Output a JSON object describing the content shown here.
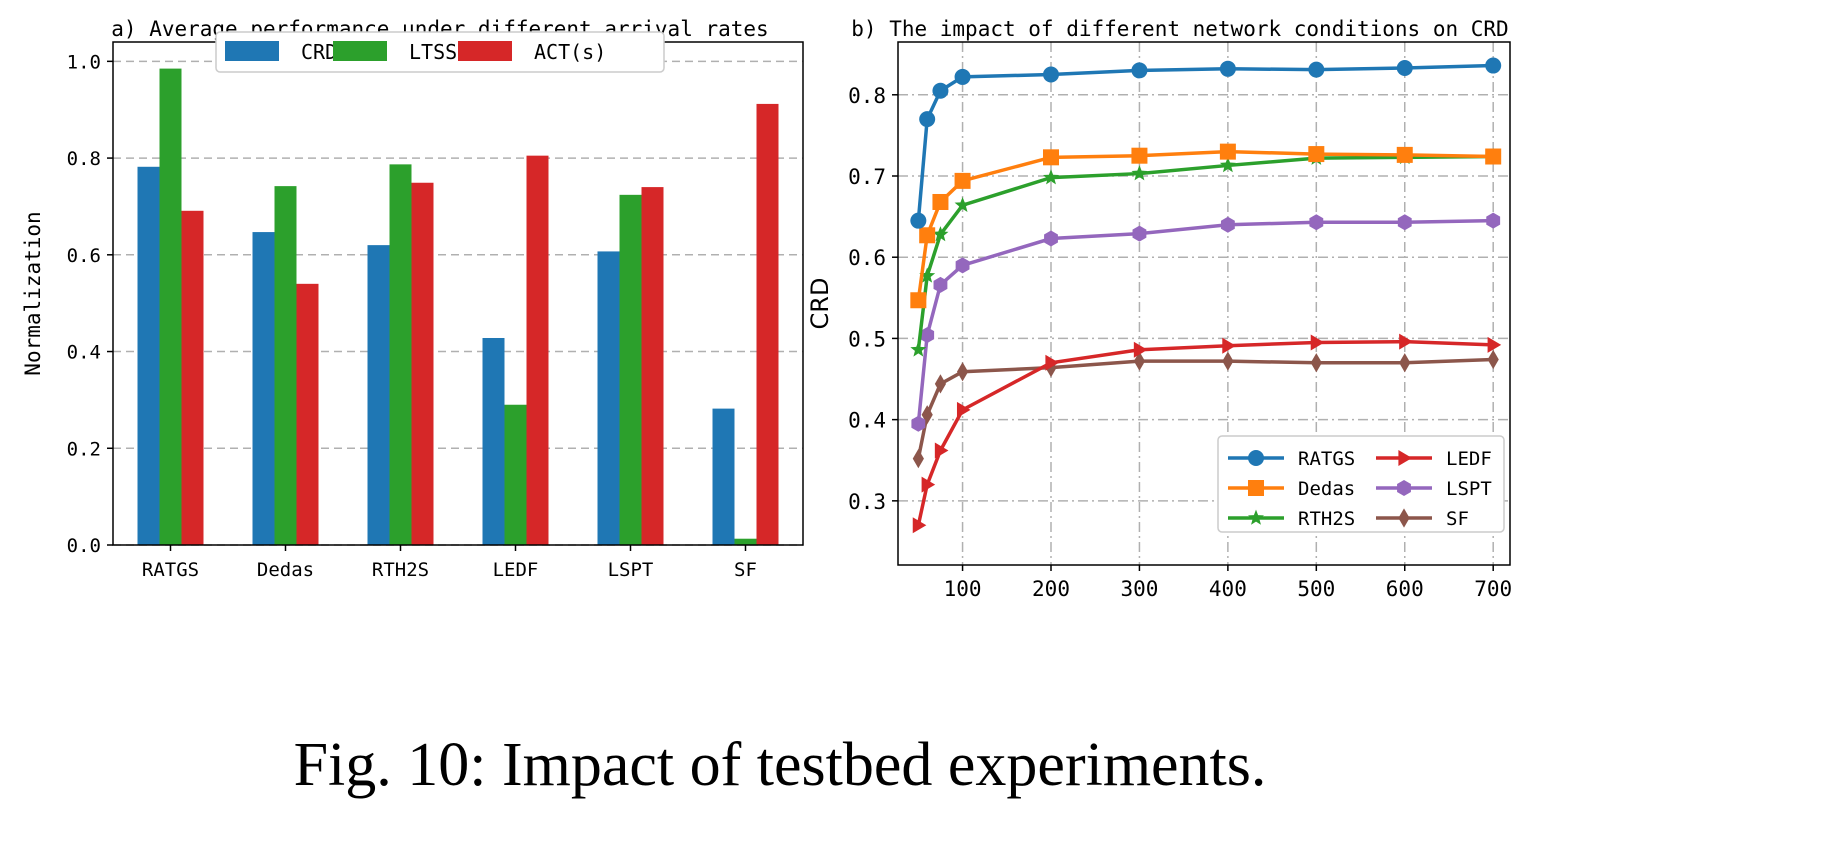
{
  "caption": "Fig. 10: Impact of testbed experiments.",
  "chart_data": [
    {
      "type": "bar",
      "title": "a) Average performance under different arrival rates",
      "xlabel": "",
      "ylabel": "Normalization",
      "ylim": [
        0,
        1.04
      ],
      "yticks": [
        "0.0",
        "0.2",
        "0.4",
        "0.6",
        "0.8",
        "1.0"
      ],
      "grid": true,
      "legend_placement": "top-center",
      "categories": [
        "RATGS",
        "Dedas",
        "RTH2S",
        "LEDF",
        "LSPT",
        "SF"
      ],
      "series": [
        {
          "name": "CRD",
          "color": "#1f77b4",
          "values": [
            0.782,
            0.647,
            0.62,
            0.428,
            0.607,
            0.282
          ]
        },
        {
          "name": "LTSS",
          "color": "#2ca02c",
          "values": [
            0.985,
            0.742,
            0.787,
            0.29,
            0.724,
            0.013
          ]
        },
        {
          "name": "ACT(s)",
          "color": "#d62728",
          "values": [
            0.691,
            0.54,
            0.749,
            0.805,
            0.74,
            0.912
          ]
        }
      ]
    },
    {
      "type": "line",
      "title": "b) The impact of different network conditions on CRD",
      "xlabel": "",
      "ylabel": "CRD",
      "xlim": [
        27,
        719
      ],
      "ylim": [
        0.221,
        0.865
      ],
      "xticks": [
        "100",
        "200",
        "300",
        "400",
        "500",
        "600",
        "700"
      ],
      "yticks": [
        "0.3",
        "0.4",
        "0.5",
        "0.6",
        "0.7",
        "0.8"
      ],
      "grid": true,
      "legend_placement": "lower-right",
      "x": [
        50,
        60,
        75,
        100,
        200,
        300,
        400,
        500,
        600,
        700
      ],
      "series": [
        {
          "name": "RATGS",
          "color": "#1f77b4",
          "marker": "circle",
          "values": [
            0.645,
            0.77,
            0.805,
            0.822,
            0.825,
            0.83,
            0.832,
            0.831,
            0.833,
            0.836
          ]
        },
        {
          "name": "Dedas",
          "color": "#ff7f0e",
          "marker": "square",
          "values": [
            0.547,
            0.627,
            0.668,
            0.694,
            0.723,
            0.725,
            0.73,
            0.727,
            0.726,
            0.724
          ]
        },
        {
          "name": "RTH2S",
          "color": "#2ca02c",
          "marker": "star",
          "values": [
            0.486,
            0.577,
            0.628,
            0.664,
            0.698,
            0.703,
            0.713,
            0.722,
            0.723,
            0.724
          ]
        },
        {
          "name": "LEDF",
          "color": "#d62728",
          "marker": "triangle-right",
          "values": [
            0.27,
            0.32,
            0.362,
            0.412,
            0.47,
            0.486,
            0.491,
            0.495,
            0.496,
            0.492
          ]
        },
        {
          "name": "LSPT",
          "color": "#9467bd",
          "marker": "hexagon",
          "values": [
            0.395,
            0.504,
            0.566,
            0.59,
            0.623,
            0.629,
            0.64,
            0.643,
            0.643,
            0.645
          ]
        },
        {
          "name": "SF",
          "color": "#8c564b",
          "marker": "diamond",
          "values": [
            0.352,
            0.406,
            0.444,
            0.459,
            0.464,
            0.472,
            0.472,
            0.47,
            0.47,
            0.474
          ]
        }
      ]
    }
  ]
}
